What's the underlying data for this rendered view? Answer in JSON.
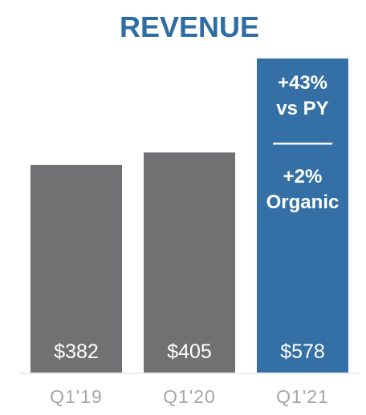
{
  "chart_data": {
    "type": "bar",
    "title": "REVENUE",
    "categories": [
      "Q1'19",
      "Q1'20",
      "Q1'21"
    ],
    "values": [
      382,
      405,
      578
    ],
    "value_labels": [
      "$382",
      "$405",
      "$578"
    ],
    "ylim": [
      0,
      578
    ],
    "xlabel": "",
    "ylabel": "",
    "grid": false,
    "colors": {
      "title": "#2e6ca4",
      "default_bar": "#717174",
      "highlight_bar": "#3470a6",
      "category_label": "#a6a6a6",
      "value_label": "#ffffff",
      "baseline": "#d9d9d9"
    },
    "highlight_index": 2,
    "annotation": {
      "lines": [
        "+43%",
        "vs PY",
        "———",
        "+2%",
        "Organic"
      ]
    }
  }
}
